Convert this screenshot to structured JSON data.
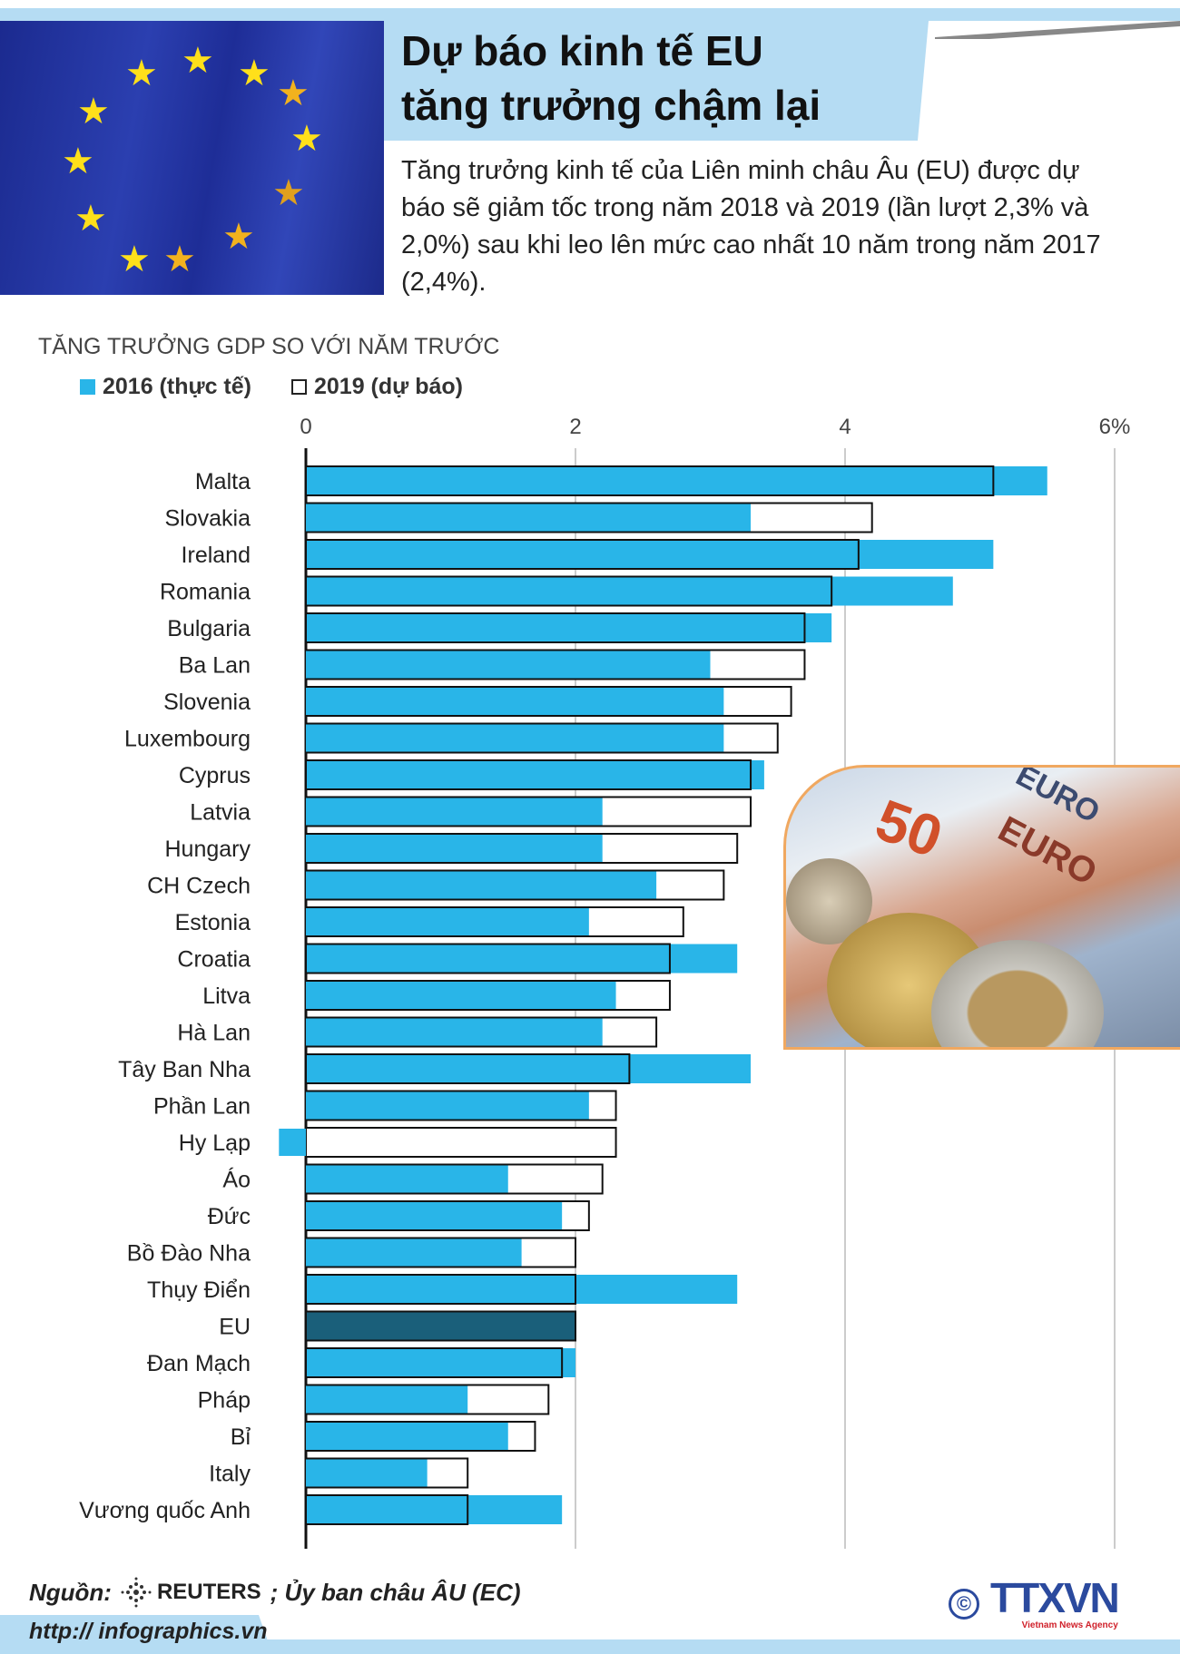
{
  "header": {
    "title_line1": "Dự báo kinh tế EU",
    "title_line2": "tăng trưởng chậm lại",
    "description": "Tăng trưởng kinh tế của Liên minh châu Âu (EU) được dự báo sẽ giảm tốc trong năm 2018 và 2019 (lần lượt 2,3% và 2,0%) sau khi leo lên mức cao nhất 10 năm trong năm 2017 (2,4%)."
  },
  "colors": {
    "accent_band": "#b5dcf3",
    "actual": "#29b5e8",
    "eu": "#1a5f7a",
    "forecast": "#ffffff"
  },
  "chart_data": {
    "type": "bar",
    "orientation": "horizontal",
    "title": "TĂNG TRƯỞNG GDP SO VỚI NĂM TRƯỚC",
    "xlim": [
      -0.2,
      6
    ],
    "xticks": [
      0,
      2,
      4,
      6
    ],
    "xtick_labels": [
      "0",
      "2",
      "4",
      "6%"
    ],
    "grid": true,
    "legend_position": "top-left",
    "categories": [
      "Malta",
      "Slovakia",
      "Ireland",
      "Romania",
      "Bulgaria",
      "Ba Lan",
      "Slovenia",
      "Luxembourg",
      "Cyprus",
      "Latvia",
      "Hungary",
      "CH Czech",
      "Estonia",
      "Croatia",
      "Litva",
      "Hà Lan",
      "Tây Ban Nha",
      "Phần Lan",
      "Hy Lạp",
      "Áo",
      "Đức",
      "Bồ Đào Nha",
      "Thụy Điển",
      "EU",
      "Đan Mạch",
      "Pháp",
      "Bỉ",
      "Italy",
      "Vương quốc Anh"
    ],
    "series": [
      {
        "name": "2016 (thực tế)",
        "style": "filled",
        "values": [
          5.5,
          3.3,
          5.1,
          4.8,
          3.9,
          3.0,
          3.1,
          3.1,
          3.4,
          2.2,
          2.2,
          2.6,
          2.1,
          3.2,
          2.3,
          2.2,
          3.3,
          2.1,
          -0.2,
          1.5,
          1.9,
          1.6,
          3.2,
          2.0,
          2.0,
          1.2,
          1.5,
          0.9,
          1.9
        ]
      },
      {
        "name": "2019 (dự báo)",
        "style": "outline",
        "values": [
          5.1,
          4.2,
          4.1,
          3.9,
          3.7,
          3.7,
          3.6,
          3.5,
          3.3,
          3.3,
          3.2,
          3.1,
          2.8,
          2.7,
          2.7,
          2.6,
          2.4,
          2.3,
          2.3,
          2.2,
          2.1,
          2.0,
          2.0,
          2.0,
          1.9,
          1.8,
          1.7,
          1.2,
          1.2
        ]
      }
    ]
  },
  "footer": {
    "source_label": "Nguồn:",
    "source_reuters": "REUTERS",
    "source_other": "; Ủy ban châu ÂU (EC)",
    "url": "http:// infographics.vn",
    "logo_text": "TTXVN",
    "logo_sub": "Vietnam News Agency",
    "copyright": "©"
  }
}
